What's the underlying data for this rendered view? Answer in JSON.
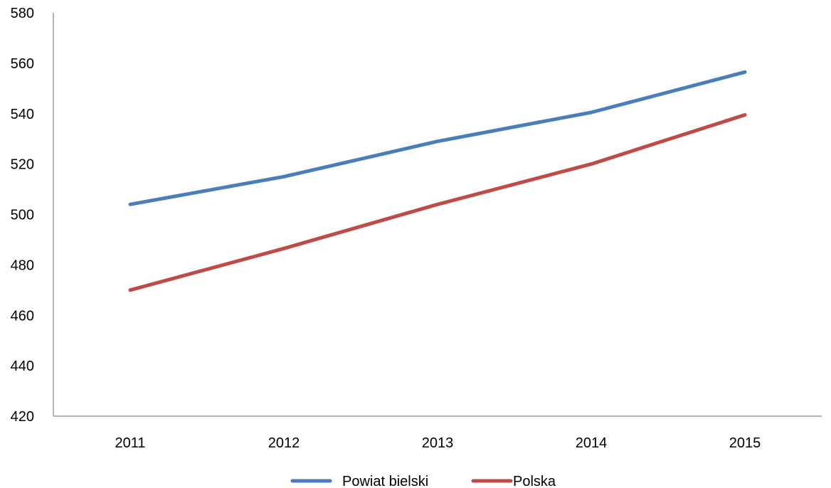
{
  "chart_data": {
    "type": "line",
    "categories": [
      "2011",
      "2012",
      "2013",
      "2014",
      "2015"
    ],
    "series": [
      {
        "name": "Powiat bielski",
        "color": "#4a7ebb",
        "values": [
          504,
          515,
          529,
          540.5,
          556.5
        ]
      },
      {
        "name": "Polska",
        "color": "#be4b48",
        "values": [
          470,
          486.5,
          504,
          520,
          539.5
        ]
      }
    ],
    "ylim": [
      420,
      580
    ],
    "yticks": [
      "420",
      "440",
      "460",
      "480",
      "500",
      "520",
      "540",
      "560",
      "580"
    ],
    "title": "",
    "xlabel": "",
    "ylabel": "",
    "grid": false,
    "legend_position": "bottom"
  }
}
